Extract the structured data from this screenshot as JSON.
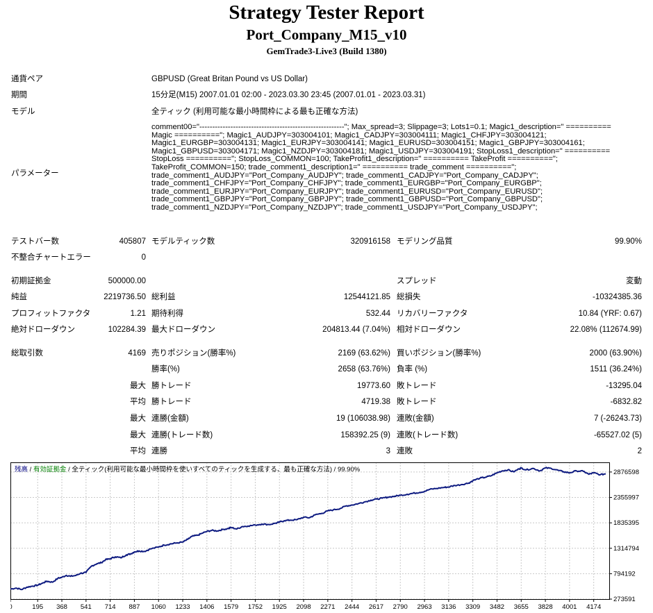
{
  "report": {
    "title": "Strategy Tester Report",
    "expert": "Port_Company_M15_v10",
    "server": "GemTrade3-Live3 (Build 1380)"
  },
  "info": {
    "symbol_label": "通貨ペア",
    "symbol_value": "GBPUSD (Great Britan Pound vs US Dollar)",
    "period_label": "期間",
    "period_value": "15分足(M15) 2007.01.01 02:00 - 2023.03.30 23:45 (2007.01.01 - 2023.03.31)",
    "model_label": "モデル",
    "model_value": "全ティック (利用可能な最小時間枠による最も正確な方法)",
    "params_label": "パラメーター",
    "params_lines": [
      "comment00=\"--------------------------------------------------------\"; Max_spread=3; Slippage=3; Lots1=0.1; Magic1_description=\" ==========",
      "Magic ==========\"; Magic1_AUDJPY=303004101; Magic1_CADJPY=303004111; Magic1_CHFJPY=303004121;",
      "Magic1_EURGBP=303004131; Magic1_EURJPY=303004141; Magic1_EURUSD=303004151; Magic1_GBPJPY=303004161;",
      "Magic1_GBPUSD=303004171; Magic1_NZDJPY=303004181; Magic1_USDJPY=303004191; StopLoss1_description=\" ==========",
      "StopLoss ==========\"; StopLoss_COMMON=100; TakeProfit1_description=\" ========== TakeProfit ==========\";",
      "TakeProfit_COMMON=150; trade_comment1_description1=\" ========== trade_comment ==========\";",
      "trade_comment1_AUDJPY=\"Port_Company_AUDJPY\"; trade_comment1_CADJPY=\"Port_Company_CADJPY\";",
      "trade_comment1_CHFJPY=\"Port_Company_CHFJPY\"; trade_comment1_EURGBP=\"Port_Company_EURGBP\";",
      "trade_comment1_EURJPY=\"Port_Company_EURJPY\"; trade_comment1_EURUSD=\"Port_Company_EURUSD\";",
      "trade_comment1_GBPJPY=\"Port_Company_GBPJPY\"; trade_comment1_GBPUSD=\"Port_Company_GBPUSD\";",
      "trade_comment1_NZDJPY=\"Port_Company_NZDJPY\"; trade_comment1_USDJPY=\"Port_Company_USDJPY\";"
    ]
  },
  "stats": {
    "bars_label": "テストバー数",
    "bars_value": "405807",
    "ticks_label": "モデルティック数",
    "ticks_value": "320916158",
    "quality_label": "モデリング品質",
    "quality_value": "99.90%",
    "mismatch_label": "不整合チャートエラー",
    "mismatch_value": "0",
    "deposit_label": "初期証拠金",
    "deposit_value": "500000.00",
    "spread_label": "スプレッド",
    "spread_value": "変動",
    "netprofit_label": "純益",
    "netprofit_value": "2219736.50",
    "grossprofit_label": "総利益",
    "grossprofit_value": "12544121.85",
    "grossloss_label": "総損失",
    "grossloss_value": "-10324385.36",
    "pf_label": "プロフィットファクタ",
    "pf_value": "1.21",
    "payoff_label": "期待利得",
    "payoff_value": "532.44",
    "rf_label": "リカバリーファクタ",
    "rf_value": "10.84 (YRF: 0.67)",
    "absdd_label": "絶対ドローダウン",
    "absdd_value": "102284.39",
    "maxdd_label": "最大ドローダウン",
    "maxdd_value": "204813.44 (7.04%)",
    "reldd_label": "相対ドローダウン",
    "reldd_value": "22.08% (112674.99)",
    "trades_label": "総取引数",
    "trades_value": "4169",
    "short_label": "売りポジション(勝率%)",
    "short_value": "2169 (63.62%)",
    "long_label": "買いポジション(勝率%)",
    "long_value": "2000 (63.90%)",
    "winrate_label": "勝率(%)",
    "winrate_value": "2658 (63.76%)",
    "lossrate_label": "負率 (%)",
    "lossrate_value": "1511 (36.24%)",
    "max_label": "最大",
    "avg_label": "平均",
    "largest_win_label": "勝トレード",
    "largest_win_value": "19773.60",
    "largest_loss_label": "敗トレード",
    "largest_loss_value": "-13295.04",
    "avg_win_label": "勝トレード",
    "avg_win_value": "4719.38",
    "avg_loss_label": "敗トレード",
    "avg_loss_value": "-6832.82",
    "max_conswin_money_label": "連勝(金額)",
    "max_conswin_money_value": "19 (106038.98)",
    "max_consloss_money_label": "連敗(金額)",
    "max_consloss_money_value": "7 (-26243.73)",
    "max_conswin_trades_label": "連勝(トレード数)",
    "max_conswin_trades_value": "158392.25 (9)",
    "max_consloss_trades_label": "連敗(トレード数)",
    "max_consloss_trades_value": "-65527.02 (5)",
    "avg_conswin_label": "連勝",
    "avg_conswin_value": "3",
    "avg_consloss_label": "連敗",
    "avg_consloss_value": "2"
  },
  "chart_data": {
    "type": "line",
    "legend": {
      "balance": "残高",
      "separator": " / ",
      "equity": "有効証拠金",
      "separator2": " / ",
      "model": "全ティック(利用可能な最小時間枠を使いすべてのティックを生成する、最も正確な方法)",
      "quality": " / 99.90%"
    },
    "colors": {
      "line": "#0d1a80",
      "balance_label": "#000080",
      "equity_label": "#008000",
      "grid": "#c8c8c8"
    },
    "x_ticks": [
      "0",
      "195",
      "368",
      "541",
      "714",
      "887",
      "1060",
      "1233",
      "1406",
      "1579",
      "1752",
      "1925",
      "2098",
      "2271",
      "2444",
      "2617",
      "2790",
      "2963",
      "3136",
      "3309",
      "3482",
      "3655",
      "3828",
      "4001",
      "4174"
    ],
    "y_ticks": [
      "2876598",
      "2355997",
      "1835395",
      "1314794",
      "794192",
      "273591"
    ],
    "xlim": [
      0,
      4285
    ],
    "ylim": [
      273591,
      3074000
    ],
    "series": [
      {
        "x": [
          0,
          40,
          80,
          120,
          160,
          195,
          230,
          260,
          300,
          340,
          368,
          400,
          430,
          470,
          500,
          541,
          580,
          620,
          650,
          680,
          714,
          750,
          790,
          830,
          860,
          887,
          920,
          960,
          1000,
          1060,
          1100,
          1140,
          1180,
          1233,
          1270,
          1300,
          1340,
          1370,
          1406,
          1440,
          1480,
          1520,
          1560,
          1579,
          1620,
          1660,
          1700,
          1752,
          1800,
          1850,
          1900,
          1925,
          1960,
          2000,
          2050,
          2098,
          2140,
          2180,
          2230,
          2271,
          2310,
          2360,
          2400,
          2444,
          2490,
          2530,
          2580,
          2617,
          2660,
          2700,
          2750,
          2790,
          2840,
          2880,
          2930,
          2963,
          3000,
          3050,
          3100,
          3136,
          3180,
          3230,
          3280,
          3309,
          3360,
          3400,
          3440,
          3482,
          3520,
          3560,
          3600,
          3640,
          3655,
          3690,
          3740,
          3790,
          3828,
          3870,
          3920,
          3960,
          4001,
          4050,
          4100,
          4140,
          4174,
          4220,
          4260
        ],
        "y": [
          480000,
          500000,
          470000,
          520000,
          540000,
          560000,
          600000,
          640000,
          620000,
          700000,
          720000,
          760000,
          740000,
          760000,
          800000,
          820000,
          950000,
          1000000,
          1020000,
          1080000,
          1100000,
          1140000,
          1120000,
          1180000,
          1200000,
          1240000,
          1260000,
          1250000,
          1300000,
          1340000,
          1380000,
          1400000,
          1420000,
          1440000,
          1500000,
          1560000,
          1580000,
          1620000,
          1660000,
          1680000,
          1670000,
          1700000,
          1720000,
          1740000,
          1710000,
          1760000,
          1770000,
          1790000,
          1810000,
          1800000,
          1830000,
          1850000,
          1880000,
          1890000,
          1900000,
          1950000,
          1940000,
          2000000,
          2030000,
          2080000,
          2100000,
          2130000,
          2180000,
          2200000,
          2230000,
          2260000,
          2300000,
          2320000,
          2340000,
          2360000,
          2380000,
          2400000,
          2420000,
          2440000,
          2460000,
          2480000,
          2520000,
          2540000,
          2560000,
          2570000,
          2600000,
          2620000,
          2650000,
          2700000,
          2750000,
          2770000,
          2800000,
          2860000,
          2900000,
          2920000,
          2880000,
          2940000,
          2960000,
          2920000,
          2950000,
          2900000,
          2960000,
          2950000,
          2910000,
          2880000,
          2860000,
          2900000,
          2890000,
          2830000,
          2860000,
          2820000,
          2840000
        ]
      }
    ]
  }
}
